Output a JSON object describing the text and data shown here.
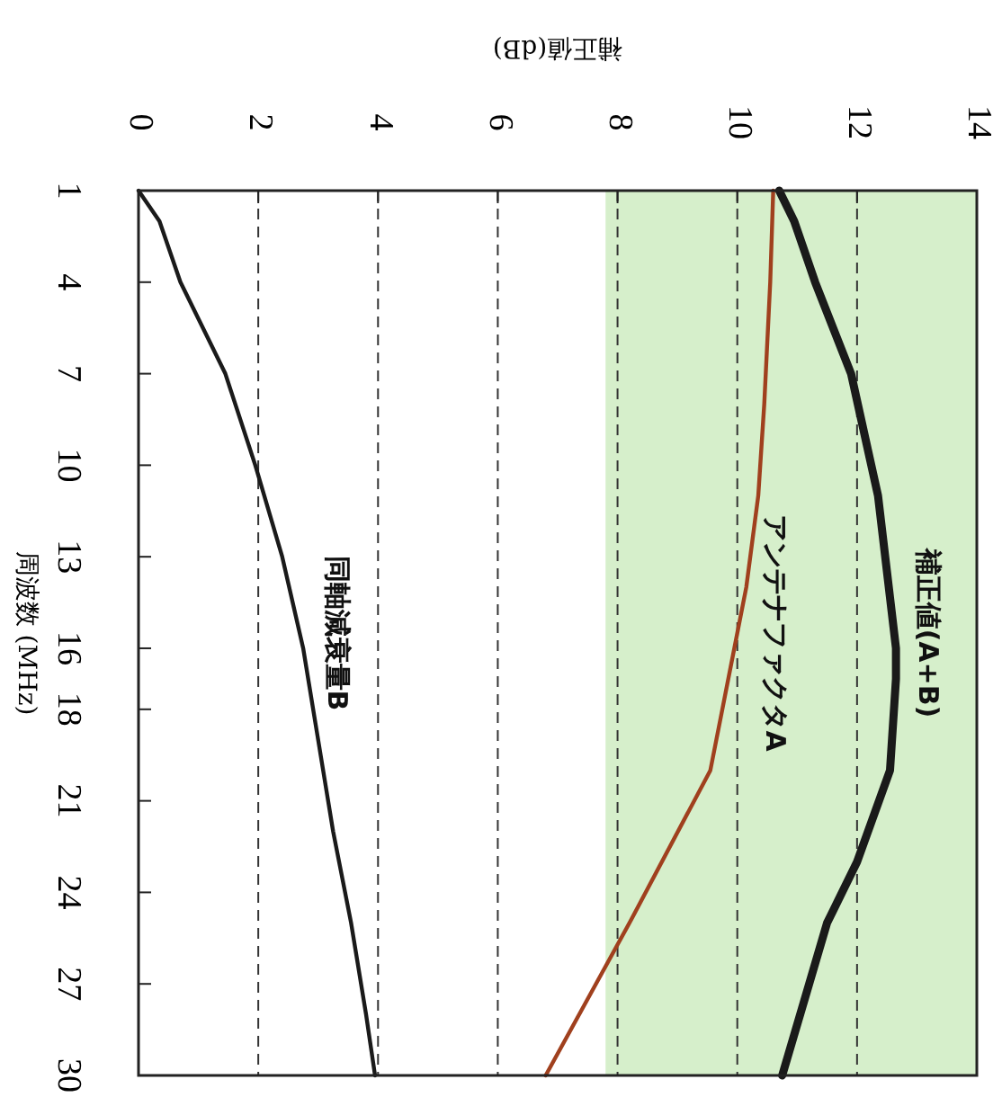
{
  "chart_data": {
    "type": "line",
    "xlabel": "補正値(dB)",
    "ylabel": "周波数 (MHz)",
    "xlim": [
      0,
      14
    ],
    "xticks": [
      0,
      2,
      4,
      6,
      8,
      10,
      12,
      14
    ],
    "ylim": [
      30,
      1
    ],
    "yticks": [
      1,
      4,
      7,
      10,
      13,
      16,
      18,
      21,
      24,
      27,
      30
    ],
    "grid": "x",
    "line_style": "solid",
    "bands": [
      {
        "axis": "x",
        "from": 7.8,
        "to": 14,
        "color": "#d6efcb"
      }
    ],
    "series": [
      {
        "name": "補正値(A+B)",
        "color": "#1a1a1a",
        "x": [
          10.7,
          10.95,
          11.3,
          11.9,
          12.35,
          12.65,
          12.65,
          12.55,
          12.0,
          11.5,
          11.2,
          10.75
        ],
        "values": [
          1,
          2,
          4,
          7,
          11,
          16,
          17,
          20,
          23,
          25,
          27,
          30
        ]
      },
      {
        "name": "アンテナファクタA",
        "color": "#a0401e",
        "x": [
          10.6,
          10.55,
          10.45,
          10.35,
          10.15,
          9.95,
          9.75,
          9.55,
          8.2,
          6.8
        ],
        "values": [
          1,
          4,
          8,
          11,
          14,
          16,
          18,
          20,
          25,
          30
        ]
      },
      {
        "name": "同軸減衰量B",
        "color": "#1a1a1a",
        "x": [
          0,
          0.35,
          0.7,
          1.45,
          1.95,
          2.4,
          2.75,
          3.0,
          3.25,
          3.55,
          3.8,
          3.95
        ],
        "values": [
          1,
          2,
          4,
          7,
          10,
          13,
          16,
          19,
          22,
          25,
          28,
          30
        ]
      }
    ]
  }
}
